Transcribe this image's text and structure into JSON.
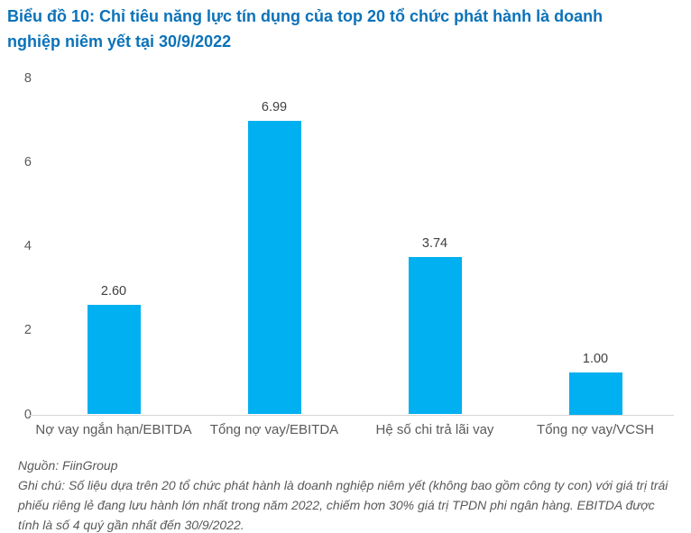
{
  "title": "Biểu đồ 10: Chỉ tiêu năng lực tín dụng của top 20 tổ chức phát hành là doanh nghiệp niêm yết tại 30/9/2022",
  "footer": {
    "source": "Nguồn: FiinGroup",
    "note": "Ghi chú: Số liệu dựa trên 20 tổ chức phát hành là doanh nghiệp niêm yết (không bao gồm công ty con) với giá trị trái phiếu riêng lẻ đang lưu hành lớn nhất trong năm 2022, chiếm hơn 30% giá trị TPDN phi ngân hàng. EBITDA được tính là số 4 quý gần nhất đến 30/9/2022."
  },
  "colors": {
    "title": "#0b72b9",
    "bar": "#00b0f0",
    "axis_line": "#d6d6d6",
    "tick_text": "#595959",
    "value_text": "#404040"
  },
  "chart_data": {
    "type": "bar",
    "categories": [
      "Nợ vay ngắn hạn/EBITDA",
      "Tổng nợ vay/EBITDA",
      "Hệ số chi trả lãi vay",
      "Tổng nợ vay/VCSH"
    ],
    "values": [
      2.6,
      6.99,
      3.74,
      1.0
    ],
    "value_labels": [
      "2.60",
      "6.99",
      "3.74",
      "1.00"
    ],
    "title": "Biểu đồ 10: Chỉ tiêu năng lực tín dụng của top 20 tổ chức phát hành là doanh nghiệp niêm yết tại 30/9/2022",
    "xlabel": "",
    "ylabel": "",
    "ylim": [
      0,
      8
    ],
    "yticks": [
      0,
      2,
      4,
      6,
      8
    ],
    "grid": false,
    "legend": false,
    "data_labels": true
  }
}
